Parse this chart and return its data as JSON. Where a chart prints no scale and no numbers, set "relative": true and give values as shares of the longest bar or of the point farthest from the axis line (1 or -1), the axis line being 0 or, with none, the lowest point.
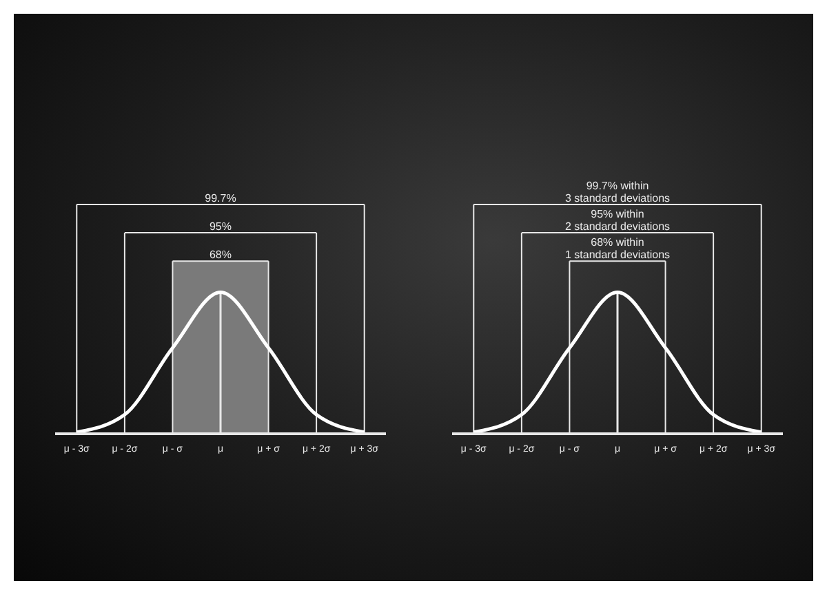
{
  "chart_data": [
    {
      "type": "line",
      "relative": true,
      "categories": [
        "μ - 3σ",
        "μ - 2σ",
        "μ - σ",
        "μ",
        "μ + σ",
        "μ + 2σ",
        "μ + 3σ"
      ],
      "series": [
        {
          "color": "#ffffff",
          "values": [
            0.011,
            0.135,
            0.607,
            1,
            0.607,
            0.135,
            0.011
          ]
        }
      ],
      "marker": "none",
      "line_style": "solid",
      "grid": "x",
      "bands": [
        {
          "axis": "x",
          "from": "μ - σ",
          "to": "μ + σ",
          "color": "#7a7a7a"
        }
      ],
      "ref_lines": [
        {
          "axis": "x",
          "value": "μ"
        }
      ],
      "annotations": [
        "99.7%",
        "95%",
        "68%"
      ]
    },
    {
      "type": "line",
      "relative": true,
      "categories": [
        "μ - 3σ",
        "μ - 2σ",
        "μ - σ",
        "μ",
        "μ + σ",
        "μ + 2σ",
        "μ + 3σ"
      ],
      "series": [
        {
          "color": "#ffffff",
          "values": [
            0.011,
            0.135,
            0.607,
            1,
            0.607,
            0.135,
            0.011
          ]
        }
      ],
      "marker": "none",
      "line_style": "solid",
      "grid": "x",
      "ref_lines": [
        {
          "axis": "x",
          "value": "μ"
        }
      ],
      "annotations": [
        "99.7% within\n3 standard deviations",
        "95% within\n2 standard deviations",
        "68% within\n1 standard deviations"
      ]
    }
  ]
}
